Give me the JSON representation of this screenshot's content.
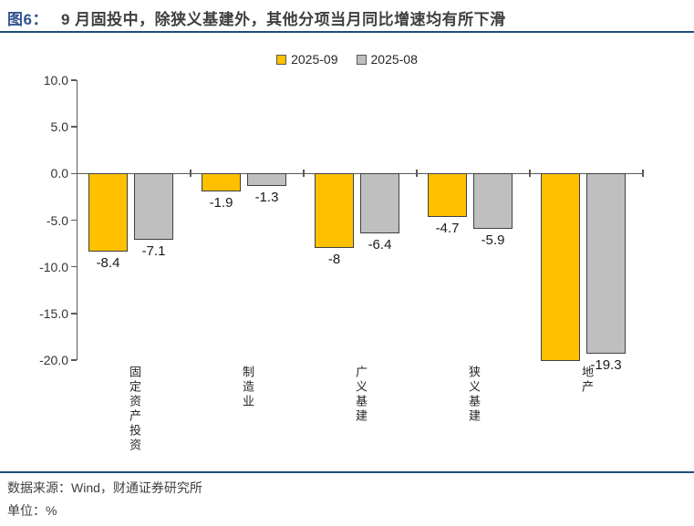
{
  "title": {
    "prefix": "图6：",
    "text": "9 月固投中，除狭义基建外，其他分项当月同比增速均有所下滑"
  },
  "chart_data": {
    "type": "bar",
    "title": "9 月固投中，除狭义基建外，其他分项当月同比增速均有所下滑",
    "categories": [
      "固定资产投资",
      "制造业",
      "广义基建",
      "狭义基建",
      "地产"
    ],
    "series": [
      {
        "name": "2025-09",
        "color": "#FFC000",
        "values": [
          -8.4,
          -1.9,
          -8,
          -4.7,
          -20.1
        ],
        "labels": [
          "-8.4",
          "-1.9",
          "-8",
          "-4.7",
          ""
        ]
      },
      {
        "name": "2025-08",
        "color": "#BFBFBF",
        "values": [
          -7.1,
          -1.3,
          -6.4,
          -5.9,
          -19.3
        ],
        "labels": [
          "-7.1",
          "-1.3",
          "-6.4",
          "-5.9",
          "-19.3"
        ]
      }
    ],
    "ylim": [
      -20,
      10
    ],
    "yticks": [
      10,
      5,
      0,
      -5,
      -10,
      -15,
      -20
    ],
    "ytick_labels": [
      "10.0",
      "5.0",
      "0.0",
      "-5.0",
      "-10.0",
      "-15.0",
      "-20.0"
    ],
    "grid": false,
    "legend_position": "top-center",
    "note_clipped_bar": "2025-09 地产 bar extends past -20 axis; its data label is not visible in the image"
  },
  "footer": {
    "source": "数据来源：Wind，财通证券研究所",
    "unit": "单位：%"
  },
  "colors": {
    "rule_blue": "#1f4e79",
    "title_prefix_blue": "#31538f",
    "axis_gray": "#595959",
    "bar_border": "#404040",
    "series_yellow": "#FFC000",
    "series_gray": "#BFBFBF"
  }
}
